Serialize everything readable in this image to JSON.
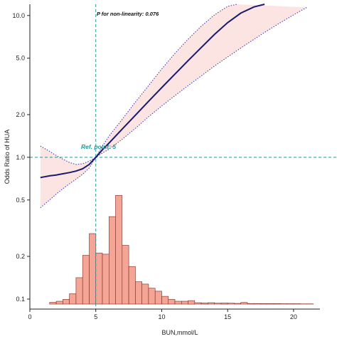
{
  "chart_data": {
    "type": "line",
    "title": "",
    "xlabel": "BUN,mmol/L",
    "ylabel": "Odds Ratio of HUA",
    "yscale": "log",
    "xlim": [
      0,
      22
    ],
    "ylim": [
      0.085,
      12
    ],
    "x_ticks": [
      {
        "v": 0,
        "label": "0"
      },
      {
        "v": 5,
        "label": "5"
      },
      {
        "v": 10,
        "label": "10"
      },
      {
        "v": 15,
        "label": "15"
      },
      {
        "v": 20,
        "label": "20"
      }
    ],
    "y_ticks": [
      {
        "v": 0.1,
        "label": "0.1"
      },
      {
        "v": 0.2,
        "label": "0.2"
      },
      {
        "v": 0.5,
        "label": "0.5"
      },
      {
        "v": 1.0,
        "label": "1.0"
      },
      {
        "v": 2.0,
        "label": "2.0"
      },
      {
        "v": 5.0,
        "label": "5.0"
      },
      {
        "v": 10.0,
        "label": "10.0"
      }
    ],
    "annotation": "P for non-linearity: 0.076",
    "reference": {
      "x": 5,
      "y": 1.0,
      "label": "Ref. point: 5"
    },
    "series": [
      {
        "role": "odds-ratio",
        "color": "#1a1a6e",
        "x": [
          0.8,
          1.5,
          2.0,
          2.5,
          3.0,
          3.5,
          4.0,
          4.5,
          5.0,
          5.5,
          6.0,
          7.0,
          8.0,
          9.0,
          10.0,
          11.0,
          12.0,
          13.0,
          14.0,
          15.0,
          16.0,
          17.0,
          17.8
        ],
        "y": [
          0.72,
          0.74,
          0.75,
          0.765,
          0.78,
          0.8,
          0.83,
          0.89,
          1.0,
          1.13,
          1.26,
          1.58,
          1.98,
          2.48,
          3.1,
          3.86,
          4.8,
          5.95,
          7.35,
          8.9,
          10.4,
          11.5,
          12.0
        ]
      },
      {
        "role": "ci-upper",
        "color": "#3333aa",
        "x": [
          0.8,
          1.5,
          2.0,
          2.5,
          3.0,
          3.5,
          4.0,
          4.5,
          5.0,
          5.5,
          6.0,
          7.0,
          8.0,
          9.0,
          10.0,
          11.0,
          12.0,
          13.0,
          14.0,
          15.0,
          15.7
        ],
        "y": [
          1.2,
          1.1,
          1.03,
          0.97,
          0.92,
          0.89,
          0.9,
          0.94,
          1.0,
          1.2,
          1.41,
          1.85,
          2.45,
          3.2,
          4.2,
          5.4,
          6.8,
          8.4,
          10.1,
          11.6,
          12.0
        ]
      },
      {
        "role": "ci-lower",
        "color": "#3333aa",
        "x": [
          0.8,
          1.5,
          2.0,
          2.5,
          3.0,
          3.5,
          4.0,
          4.5,
          5.0,
          5.5,
          6.0,
          7.0,
          8.0,
          9.0,
          10.0,
          11.0,
          12.0,
          13.0,
          14.0,
          15.0,
          16.0,
          17.0,
          18.0,
          19.0,
          20.0,
          21.0
        ],
        "y": [
          0.44,
          0.5,
          0.55,
          0.6,
          0.65,
          0.7,
          0.76,
          0.84,
          1.0,
          1.07,
          1.14,
          1.34,
          1.6,
          1.93,
          2.3,
          2.72,
          3.2,
          3.75,
          4.4,
          5.1,
          5.9,
          6.8,
          7.8,
          8.9,
          10.1,
          11.4
        ]
      }
    ],
    "histogram": {
      "color": "#f4a596",
      "edge": "#7a2b20",
      "bin_width": 0.5,
      "bins": [
        {
          "x0": 1.5,
          "f": 0.015
        },
        {
          "x0": 2.0,
          "f": 0.024
        },
        {
          "x0": 2.5,
          "f": 0.04
        },
        {
          "x0": 3.0,
          "f": 0.088
        },
        {
          "x0": 3.5,
          "f": 0.225
        },
        {
          "x0": 4.0,
          "f": 0.415
        },
        {
          "x0": 4.5,
          "f": 0.6
        },
        {
          "x0": 5.0,
          "f": 0.435
        },
        {
          "x0": 5.5,
          "f": 0.425
        },
        {
          "x0": 6.0,
          "f": 0.745
        },
        {
          "x0": 6.5,
          "f": 0.925
        },
        {
          "x0": 7.0,
          "f": 0.5
        },
        {
          "x0": 7.5,
          "f": 0.32
        },
        {
          "x0": 8.0,
          "f": 0.19
        },
        {
          "x0": 8.5,
          "f": 0.17
        },
        {
          "x0": 9.0,
          "f": 0.135
        },
        {
          "x0": 9.5,
          "f": 0.11
        },
        {
          "x0": 10.0,
          "f": 0.066
        },
        {
          "x0": 10.5,
          "f": 0.04
        },
        {
          "x0": 11.0,
          "f": 0.024
        },
        {
          "x0": 11.5,
          "f": 0.024
        },
        {
          "x0": 12.0,
          "f": 0.03
        },
        {
          "x0": 12.5,
          "f": 0.012
        },
        {
          "x0": 13.0,
          "f": 0.01
        },
        {
          "x0": 13.5,
          "f": 0.012
        },
        {
          "x0": 14.0,
          "f": 0.008
        },
        {
          "x0": 14.5,
          "f": 0.01
        },
        {
          "x0": 15.0,
          "f": 0.008
        },
        {
          "x0": 15.5,
          "f": 0.006
        },
        {
          "x0": 16.0,
          "f": 0.014
        },
        {
          "x0": 16.5,
          "f": 0.005
        },
        {
          "x0": 17.0,
          "f": 0.005
        },
        {
          "x0": 17.5,
          "f": 0.004
        },
        {
          "x0": 18.0,
          "f": 0.004
        },
        {
          "x0": 18.5,
          "f": 0.004
        },
        {
          "x0": 19.0,
          "f": 0.003
        },
        {
          "x0": 19.5,
          "f": 0.003
        },
        {
          "x0": 20.0,
          "f": 0.003
        },
        {
          "x0": 20.5,
          "f": 0.002
        },
        {
          "x0": 21.0,
          "f": 0.002
        }
      ]
    }
  }
}
